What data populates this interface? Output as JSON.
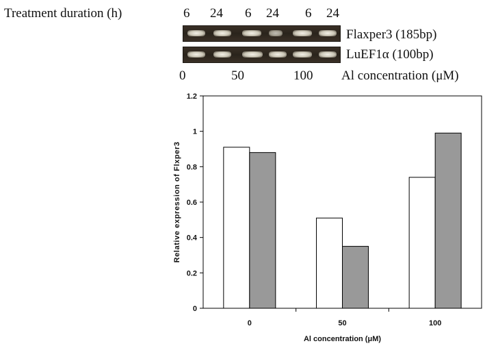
{
  "gel": {
    "duration_label": "Treatment duration (h)",
    "durations": [
      "6",
      "24",
      "6",
      "24",
      "6",
      "24"
    ],
    "gene1_label": "Flaxper3 (185bp)",
    "gene2_label": "LuEF1α (100bp)",
    "concentrations": [
      "0",
      "50",
      "100"
    ],
    "concentration_label": "Al concentration (μM)"
  },
  "chart_data": {
    "type": "bar",
    "categories": [
      "0",
      "50",
      "100"
    ],
    "series": [
      {
        "values": [
          0.91,
          0.51,
          0.74
        ],
        "color": "#ffffff"
      },
      {
        "values": [
          0.88,
          0.35,
          0.99
        ],
        "color": "#999999"
      }
    ],
    "xlabel": "Al concentration (μM)",
    "ylabel": "Relative expression of Flxper3",
    "ylim": [
      0,
      1.2
    ],
    "yticks": [
      "0",
      "0.2",
      "0.4",
      "0.6",
      "0.8",
      "1",
      "1.2"
    ],
    "grid": false
  }
}
